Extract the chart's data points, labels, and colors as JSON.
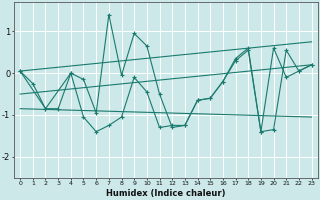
{
  "xlabel": "Humidex (Indice chaleur)",
  "background_color": "#cce8e8",
  "line_color": "#1a7a6e",
  "grid_color": "#ffffff",
  "xlim": [
    -0.5,
    23.5
  ],
  "ylim": [
    -2.5,
    1.7
  ],
  "yticks": [
    -2,
    -1,
    0,
    1
  ],
  "series1_x": [
    0,
    1,
    2,
    3,
    4,
    5,
    6,
    7,
    8,
    9,
    10,
    11,
    12,
    13,
    14,
    15,
    16,
    17,
    18,
    19,
    20,
    21,
    22,
    23
  ],
  "series1_y": [
    0.05,
    -0.25,
    -0.85,
    -0.85,
    0.0,
    -0.15,
    -0.95,
    1.4,
    -0.05,
    0.95,
    0.65,
    -0.5,
    -1.3,
    -1.25,
    -0.65,
    -0.6,
    -0.2,
    0.35,
    0.6,
    -1.4,
    0.6,
    -0.1,
    0.05,
    0.2
  ],
  "series2_x": [
    0,
    2,
    4,
    5,
    6,
    7,
    8,
    9,
    10,
    11,
    12,
    13,
    14,
    15,
    16,
    17,
    18,
    19,
    20,
    21,
    22,
    23
  ],
  "series2_y": [
    0.05,
    -0.85,
    0.0,
    -1.05,
    -1.4,
    -1.25,
    -1.05,
    -0.1,
    -0.45,
    -1.3,
    -1.25,
    -1.25,
    -0.65,
    -0.6,
    -0.2,
    0.3,
    0.55,
    -1.4,
    -1.35,
    0.55,
    0.05,
    0.2
  ],
  "trend1_x": [
    0,
    23
  ],
  "trend1_y": [
    0.05,
    0.75
  ],
  "trend2_x": [
    0,
    23
  ],
  "trend2_y": [
    -0.5,
    0.2
  ],
  "trend3_x": [
    0,
    23
  ],
  "trend3_y": [
    -0.85,
    -1.05
  ]
}
